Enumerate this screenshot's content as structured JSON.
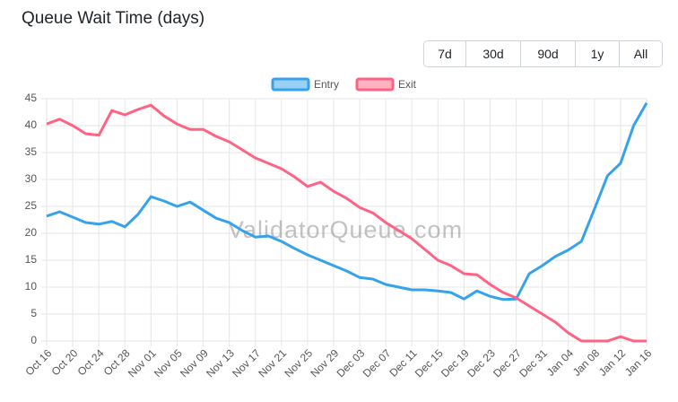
{
  "chart_data": {
    "type": "line",
    "title": "Queue Wait Time (days)",
    "range_buttons": [
      "7d",
      "30d",
      "90d",
      "1y",
      "All"
    ],
    "watermark": "ValidatorQueue.com",
    "categories": [
      "Oct 16",
      null,
      "Oct 20",
      null,
      "Oct 24",
      null,
      "Oct 28",
      null,
      "Nov 01",
      null,
      "Nov 05",
      null,
      "Nov 09",
      null,
      "Nov 13",
      null,
      "Nov 17",
      null,
      "Nov 21",
      null,
      "Nov 25",
      null,
      "Nov 29",
      null,
      "Dec 03",
      null,
      "Dec 07",
      null,
      "Dec 11",
      null,
      "Dec 15",
      null,
      "Dec 19",
      null,
      "Dec 23",
      null,
      "Dec 27",
      null,
      "Dec 31",
      null,
      "Jan 04",
      null,
      "Jan 08",
      null,
      "Jan 12",
      null,
      "Jan 16"
    ],
    "series": [
      {
        "name": "Entry",
        "color": "#36a2eb",
        "values": [
          23.2,
          24,
          23,
          22,
          21.7,
          22.2,
          21.2,
          23.5,
          26.8,
          26,
          25,
          25.8,
          24.3,
          22.8,
          22,
          20.5,
          19.3,
          19.5,
          18.5,
          17.2,
          16,
          15,
          14,
          13,
          11.8,
          11.5,
          10.5,
          10,
          9.5,
          9.5,
          9.3,
          9,
          7.8,
          9.3,
          8.3,
          7.7,
          7.8,
          12.5,
          14,
          15.7,
          16.9,
          18.5,
          24.5,
          30.7,
          33,
          40,
          44.2
        ]
      },
      {
        "name": "Exit",
        "color": "#ff6384",
        "values": [
          40.3,
          41.2,
          40,
          38.5,
          38.2,
          42.8,
          42,
          43,
          43.8,
          41.8,
          40.3,
          39.3,
          39.3,
          38,
          37,
          35.5,
          34,
          33,
          32,
          30.5,
          28.7,
          29.5,
          27.8,
          26.5,
          24.8,
          23.8,
          22,
          20.5,
          19,
          17,
          15,
          14,
          12.5,
          12.3,
          10.5,
          9,
          8,
          6.5,
          5,
          3.5,
          1.5,
          0,
          0,
          0,
          0.8,
          0,
          0
        ]
      }
    ],
    "ylim": [
      0,
      45
    ],
    "yticks": [
      0,
      5,
      10,
      15,
      20,
      25,
      30,
      35,
      40,
      45
    ],
    "grid": true
  }
}
